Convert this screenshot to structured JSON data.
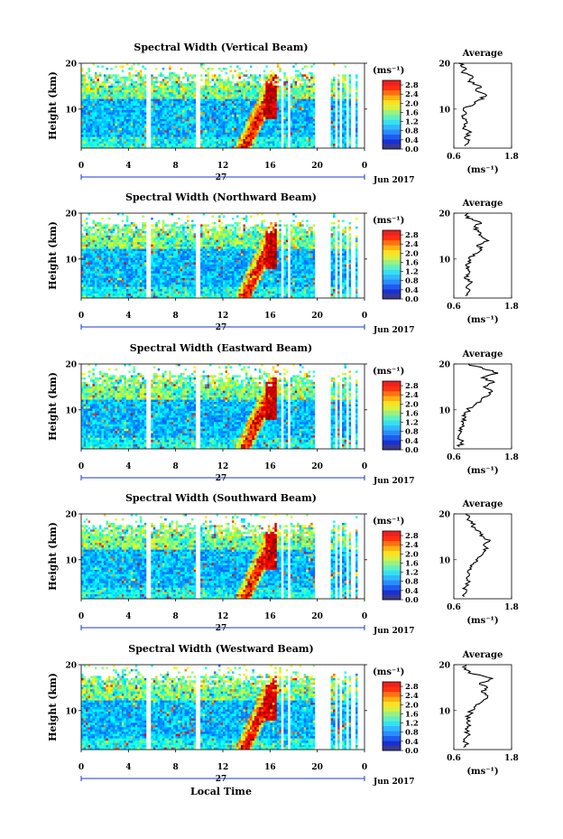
{
  "xlabel_bottom": "Local Time",
  "panels": [
    {
      "title": "Spectral Width (Vertical Beam)"
    },
    {
      "title": "Spectral Width (Northward Beam)"
    },
    {
      "title": "Spectral Width (Eastward Beam)"
    },
    {
      "title": "Spectral Width (Southward Beam)"
    },
    {
      "title": "Spectral Width (Westward Beam)"
    }
  ],
  "common": {
    "ylabel": "Height (km)",
    "date_day": "27",
    "month_year": "Jun 2017",
    "colorbar_unit": "(ms⁻¹)",
    "avg_title": "Average",
    "avg_xlabel": "(ms⁻¹)"
  },
  "chart_data": [
    {
      "type": "heatmap",
      "title": "Spectral Width (Vertical Beam)",
      "ylabel": "Height (km)",
      "x_ticks": [
        "0",
        "4",
        "8",
        "12",
        "16",
        "20",
        "0"
      ],
      "y_ticks": [
        "20",
        "10"
      ],
      "xlim": [
        0,
        24
      ],
      "ylim": [
        1.5,
        20
      ],
      "colorbar": {
        "ticks": [
          "2.8",
          "2.4",
          "2.0",
          "1.6",
          "1.2",
          "0.8",
          "0.4",
          "0.0"
        ],
        "range": [
          0,
          3.0
        ]
      },
      "average": {
        "xlim": [
          0.6,
          1.8
        ],
        "x_ticks": [
          "0.6",
          "1.8"
        ],
        "y_ticks": [
          "20",
          "10"
        ],
        "profile": [
          [
            0.82,
            2
          ],
          [
            0.9,
            3
          ],
          [
            0.84,
            4
          ],
          [
            0.96,
            5
          ],
          [
            0.8,
            6
          ],
          [
            0.88,
            7
          ],
          [
            0.78,
            8
          ],
          [
            0.86,
            9
          ],
          [
            0.8,
            10
          ],
          [
            1.02,
            11
          ],
          [
            1.12,
            12
          ],
          [
            1.28,
            13
          ],
          [
            1.06,
            14
          ],
          [
            1.16,
            15
          ],
          [
            0.9,
            16
          ],
          [
            1.0,
            17
          ],
          [
            0.76,
            18
          ],
          [
            0.84,
            19
          ],
          [
            0.7,
            20
          ]
        ]
      }
    },
    {
      "type": "heatmap",
      "title": "Spectral Width (Northward Beam)",
      "ylabel": "Height (km)",
      "x_ticks": [
        "0",
        "4",
        "8",
        "12",
        "16",
        "20",
        "0"
      ],
      "y_ticks": [
        "20",
        "10"
      ],
      "xlim": [
        0,
        24
      ],
      "ylim": [
        1.5,
        20
      ],
      "colorbar": {
        "ticks": [
          "2.8",
          "2.4",
          "2.0",
          "1.6",
          "1.2",
          "0.8",
          "0.4",
          "0.0"
        ],
        "range": [
          0,
          3.0
        ]
      },
      "average": {
        "xlim": [
          0.6,
          1.8
        ],
        "x_ticks": [
          "0.6",
          "1.8"
        ],
        "y_ticks": [
          "20",
          "10"
        ],
        "profile": [
          [
            0.84,
            2
          ],
          [
            0.92,
            3
          ],
          [
            0.86,
            4
          ],
          [
            0.98,
            5
          ],
          [
            0.82,
            6
          ],
          [
            0.92,
            7
          ],
          [
            0.86,
            8
          ],
          [
            0.9,
            9
          ],
          [
            0.92,
            10
          ],
          [
            1.0,
            11
          ],
          [
            1.18,
            12
          ],
          [
            1.08,
            13
          ],
          [
            1.32,
            14
          ],
          [
            1.18,
            15
          ],
          [
            1.1,
            16
          ],
          [
            1.02,
            17
          ],
          [
            1.16,
            18
          ],
          [
            0.86,
            19
          ],
          [
            0.9,
            20
          ]
        ]
      }
    },
    {
      "type": "heatmap",
      "title": "Spectral Width (Eastward Beam)",
      "ylabel": "Height (km)",
      "x_ticks": [
        "0",
        "4",
        "8",
        "12",
        "16",
        "20",
        "0"
      ],
      "y_ticks": [
        "20",
        "10"
      ],
      "xlim": [
        0,
        24
      ],
      "ylim": [
        1.5,
        20
      ],
      "colorbar": {
        "ticks": [
          "2.8",
          "2.4",
          "2.0",
          "1.6",
          "1.2",
          "0.8",
          "0.4",
          "0.0"
        ],
        "range": [
          0,
          3.0
        ]
      },
      "average": {
        "xlim": [
          0.6,
          1.8
        ],
        "x_ticks": [
          "0.6",
          "1.8"
        ],
        "y_ticks": [
          "20",
          "10"
        ],
        "profile": [
          [
            0.72,
            2
          ],
          [
            0.76,
            3
          ],
          [
            0.7,
            4
          ],
          [
            0.74,
            5
          ],
          [
            0.72,
            6
          ],
          [
            0.8,
            7
          ],
          [
            0.78,
            8
          ],
          [
            0.84,
            9
          ],
          [
            0.9,
            10
          ],
          [
            1.02,
            11
          ],
          [
            1.16,
            12
          ],
          [
            1.3,
            13
          ],
          [
            1.4,
            14
          ],
          [
            1.22,
            15
          ],
          [
            1.44,
            16
          ],
          [
            1.18,
            17
          ],
          [
            1.52,
            18
          ],
          [
            1.2,
            19
          ],
          [
            0.9,
            20
          ]
        ]
      }
    },
    {
      "type": "heatmap",
      "title": "Spectral Width (Southward Beam)",
      "ylabel": "Height (km)",
      "x_ticks": [
        "0",
        "4",
        "8",
        "12",
        "16",
        "20",
        "0"
      ],
      "y_ticks": [
        "20",
        "10"
      ],
      "xlim": [
        0,
        24
      ],
      "ylim": [
        1.5,
        20
      ],
      "colorbar": {
        "ticks": [
          "2.8",
          "2.4",
          "2.0",
          "1.6",
          "1.2",
          "0.8",
          "0.4",
          "0.0"
        ],
        "range": [
          0,
          3.0
        ]
      },
      "average": {
        "xlim": [
          0.6,
          1.8
        ],
        "x_ticks": [
          "0.6",
          "1.8"
        ],
        "y_ticks": [
          "20",
          "10"
        ],
        "profile": [
          [
            0.82,
            2
          ],
          [
            0.86,
            3
          ],
          [
            0.84,
            4
          ],
          [
            0.9,
            5
          ],
          [
            0.86,
            6
          ],
          [
            0.92,
            7
          ],
          [
            0.96,
            8
          ],
          [
            1.0,
            9
          ],
          [
            1.06,
            10
          ],
          [
            1.18,
            11
          ],
          [
            1.26,
            12
          ],
          [
            1.24,
            13
          ],
          [
            1.34,
            14
          ],
          [
            1.22,
            15
          ],
          [
            1.16,
            16
          ],
          [
            1.04,
            17
          ],
          [
            0.96,
            18
          ],
          [
            0.9,
            19
          ],
          [
            0.84,
            20
          ]
        ]
      }
    },
    {
      "type": "heatmap",
      "title": "Spectral Width (Westward Beam)",
      "ylabel": "Height (km)",
      "x_ticks": [
        "0",
        "4",
        "8",
        "12",
        "16",
        "20",
        "0"
      ],
      "y_ticks": [
        "20",
        "10"
      ],
      "xlim": [
        0,
        24
      ],
      "ylim": [
        1.5,
        20
      ],
      "colorbar": {
        "ticks": [
          "2.8",
          "2.4",
          "2.0",
          "1.6",
          "1.2",
          "0.8",
          "0.4",
          "0.0"
        ],
        "range": [
          0,
          3.0
        ]
      },
      "average": {
        "xlim": [
          0.6,
          1.8
        ],
        "x_ticks": [
          "0.6",
          "1.8"
        ],
        "y_ticks": [
          "20",
          "10"
        ],
        "profile": [
          [
            0.8,
            2
          ],
          [
            0.86,
            3
          ],
          [
            0.84,
            4
          ],
          [
            0.9,
            5
          ],
          [
            0.84,
            6
          ],
          [
            0.9,
            7
          ],
          [
            0.88,
            8
          ],
          [
            0.92,
            9
          ],
          [
            0.96,
            10
          ],
          [
            1.06,
            11
          ],
          [
            1.2,
            12
          ],
          [
            1.3,
            13
          ],
          [
            1.18,
            14
          ],
          [
            1.3,
            15
          ],
          [
            1.14,
            16
          ],
          [
            1.4,
            17
          ],
          [
            1.0,
            18
          ],
          [
            0.82,
            19
          ],
          [
            0.86,
            20
          ]
        ]
      }
    }
  ]
}
